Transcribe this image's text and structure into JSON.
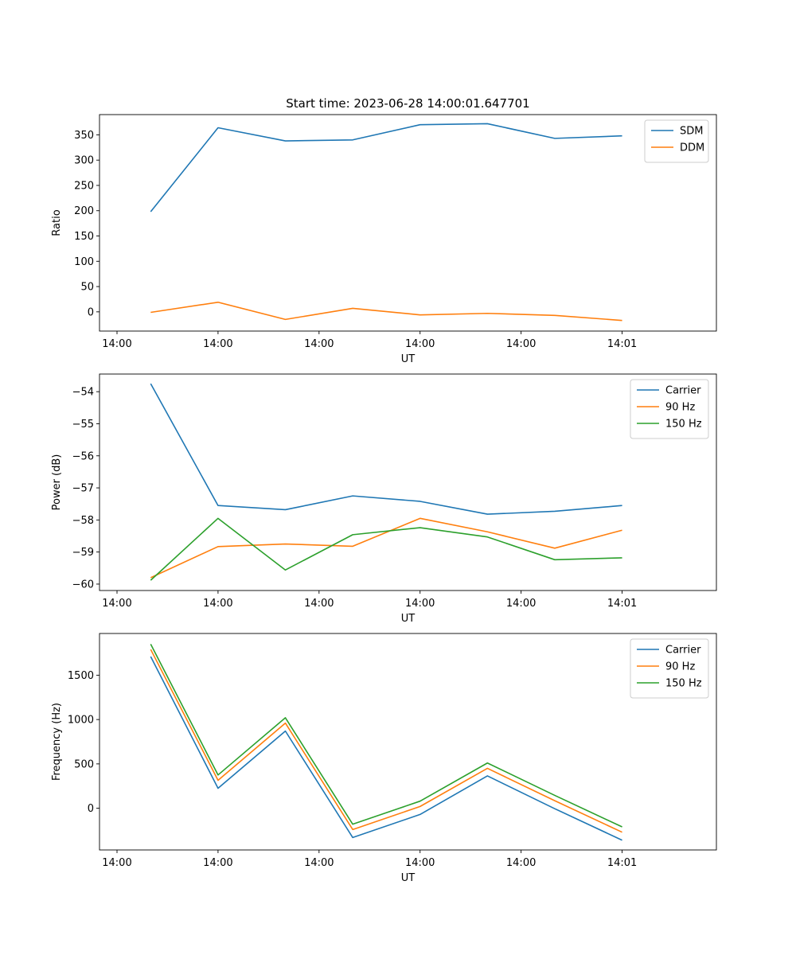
{
  "chart_data": [
    {
      "type": "line",
      "title": "Start time: 2023-06-28 14:00:01.647701",
      "xlabel": "UT",
      "ylabel": "Ratio",
      "x_tick_labels": [
        "14:00",
        "14:00",
        "14:00",
        "14:00",
        "14:00",
        "14:01"
      ],
      "x": [
        1,
        2,
        3,
        4,
        5,
        6,
        7,
        8
      ],
      "xlim": [
        0.24,
        9.4
      ],
      "ylim": [
        -38,
        390
      ],
      "y_ticks": [
        0,
        50,
        100,
        150,
        200,
        250,
        300,
        350
      ],
      "legend_position": "upper right",
      "series": [
        {
          "name": "SDM",
          "color": "#1f77b4",
          "values": [
            198,
            364,
            338,
            340,
            370,
            372,
            343,
            348
          ]
        },
        {
          "name": "DDM",
          "color": "#ff7f0e",
          "values": [
            -1,
            19,
            -15,
            7,
            -6,
            -3,
            -7,
            -17
          ]
        }
      ]
    },
    {
      "type": "line",
      "title": "",
      "xlabel": "UT",
      "ylabel": "Power (dB)",
      "x_tick_labels": [
        "14:00",
        "14:00",
        "14:00",
        "14:00",
        "14:00",
        "14:01"
      ],
      "x": [
        1,
        2,
        3,
        4,
        5,
        6,
        7,
        8
      ],
      "xlim": [
        0.24,
        9.4
      ],
      "ylim": [
        -60.2,
        -53.45
      ],
      "y_ticks": [
        -60,
        -59,
        -58,
        -57,
        -56,
        -55,
        -54
      ],
      "legend_position": "upper right",
      "series": [
        {
          "name": "Carrier",
          "color": "#1f77b4",
          "values": [
            -53.75,
            -57.55,
            -57.68,
            -57.25,
            -57.42,
            -57.82,
            -57.73,
            -57.55
          ]
        },
        {
          "name": "90 Hz",
          "color": "#ff7f0e",
          "values": [
            -59.8,
            -58.83,
            -58.75,
            -58.82,
            -57.95,
            -58.37,
            -58.88,
            -58.32
          ]
        },
        {
          "name": "150 Hz",
          "color": "#2ca02c",
          "values": [
            -59.88,
            -57.95,
            -59.56,
            -58.46,
            -58.24,
            -58.53,
            -59.24,
            -59.18
          ]
        }
      ]
    },
    {
      "type": "line",
      "title": "",
      "xlabel": "UT",
      "ylabel": "Frequency (Hz)",
      "x_tick_labels": [
        "14:00",
        "14:00",
        "14:00",
        "14:00",
        "14:00",
        "14:01"
      ],
      "x": [
        1,
        2,
        3,
        4,
        5,
        6,
        7,
        8
      ],
      "xlim": [
        0.24,
        9.4
      ],
      "ylim": [
        -470,
        1970
      ],
      "y_ticks": [
        0,
        500,
        1000,
        1500
      ],
      "legend_position": "upper right",
      "series": [
        {
          "name": "Carrier",
          "color": "#1f77b4",
          "values": [
            1710,
            225,
            870,
            -330,
            -70,
            365,
            -5,
            -360
          ]
        },
        {
          "name": "90 Hz",
          "color": "#ff7f0e",
          "values": [
            1790,
            315,
            960,
            -240,
            20,
            450,
            85,
            -270
          ]
        },
        {
          "name": "150 Hz",
          "color": "#2ca02c",
          "values": [
            1850,
            375,
            1020,
            -180,
            80,
            510,
            145,
            -210
          ]
        }
      ]
    }
  ]
}
